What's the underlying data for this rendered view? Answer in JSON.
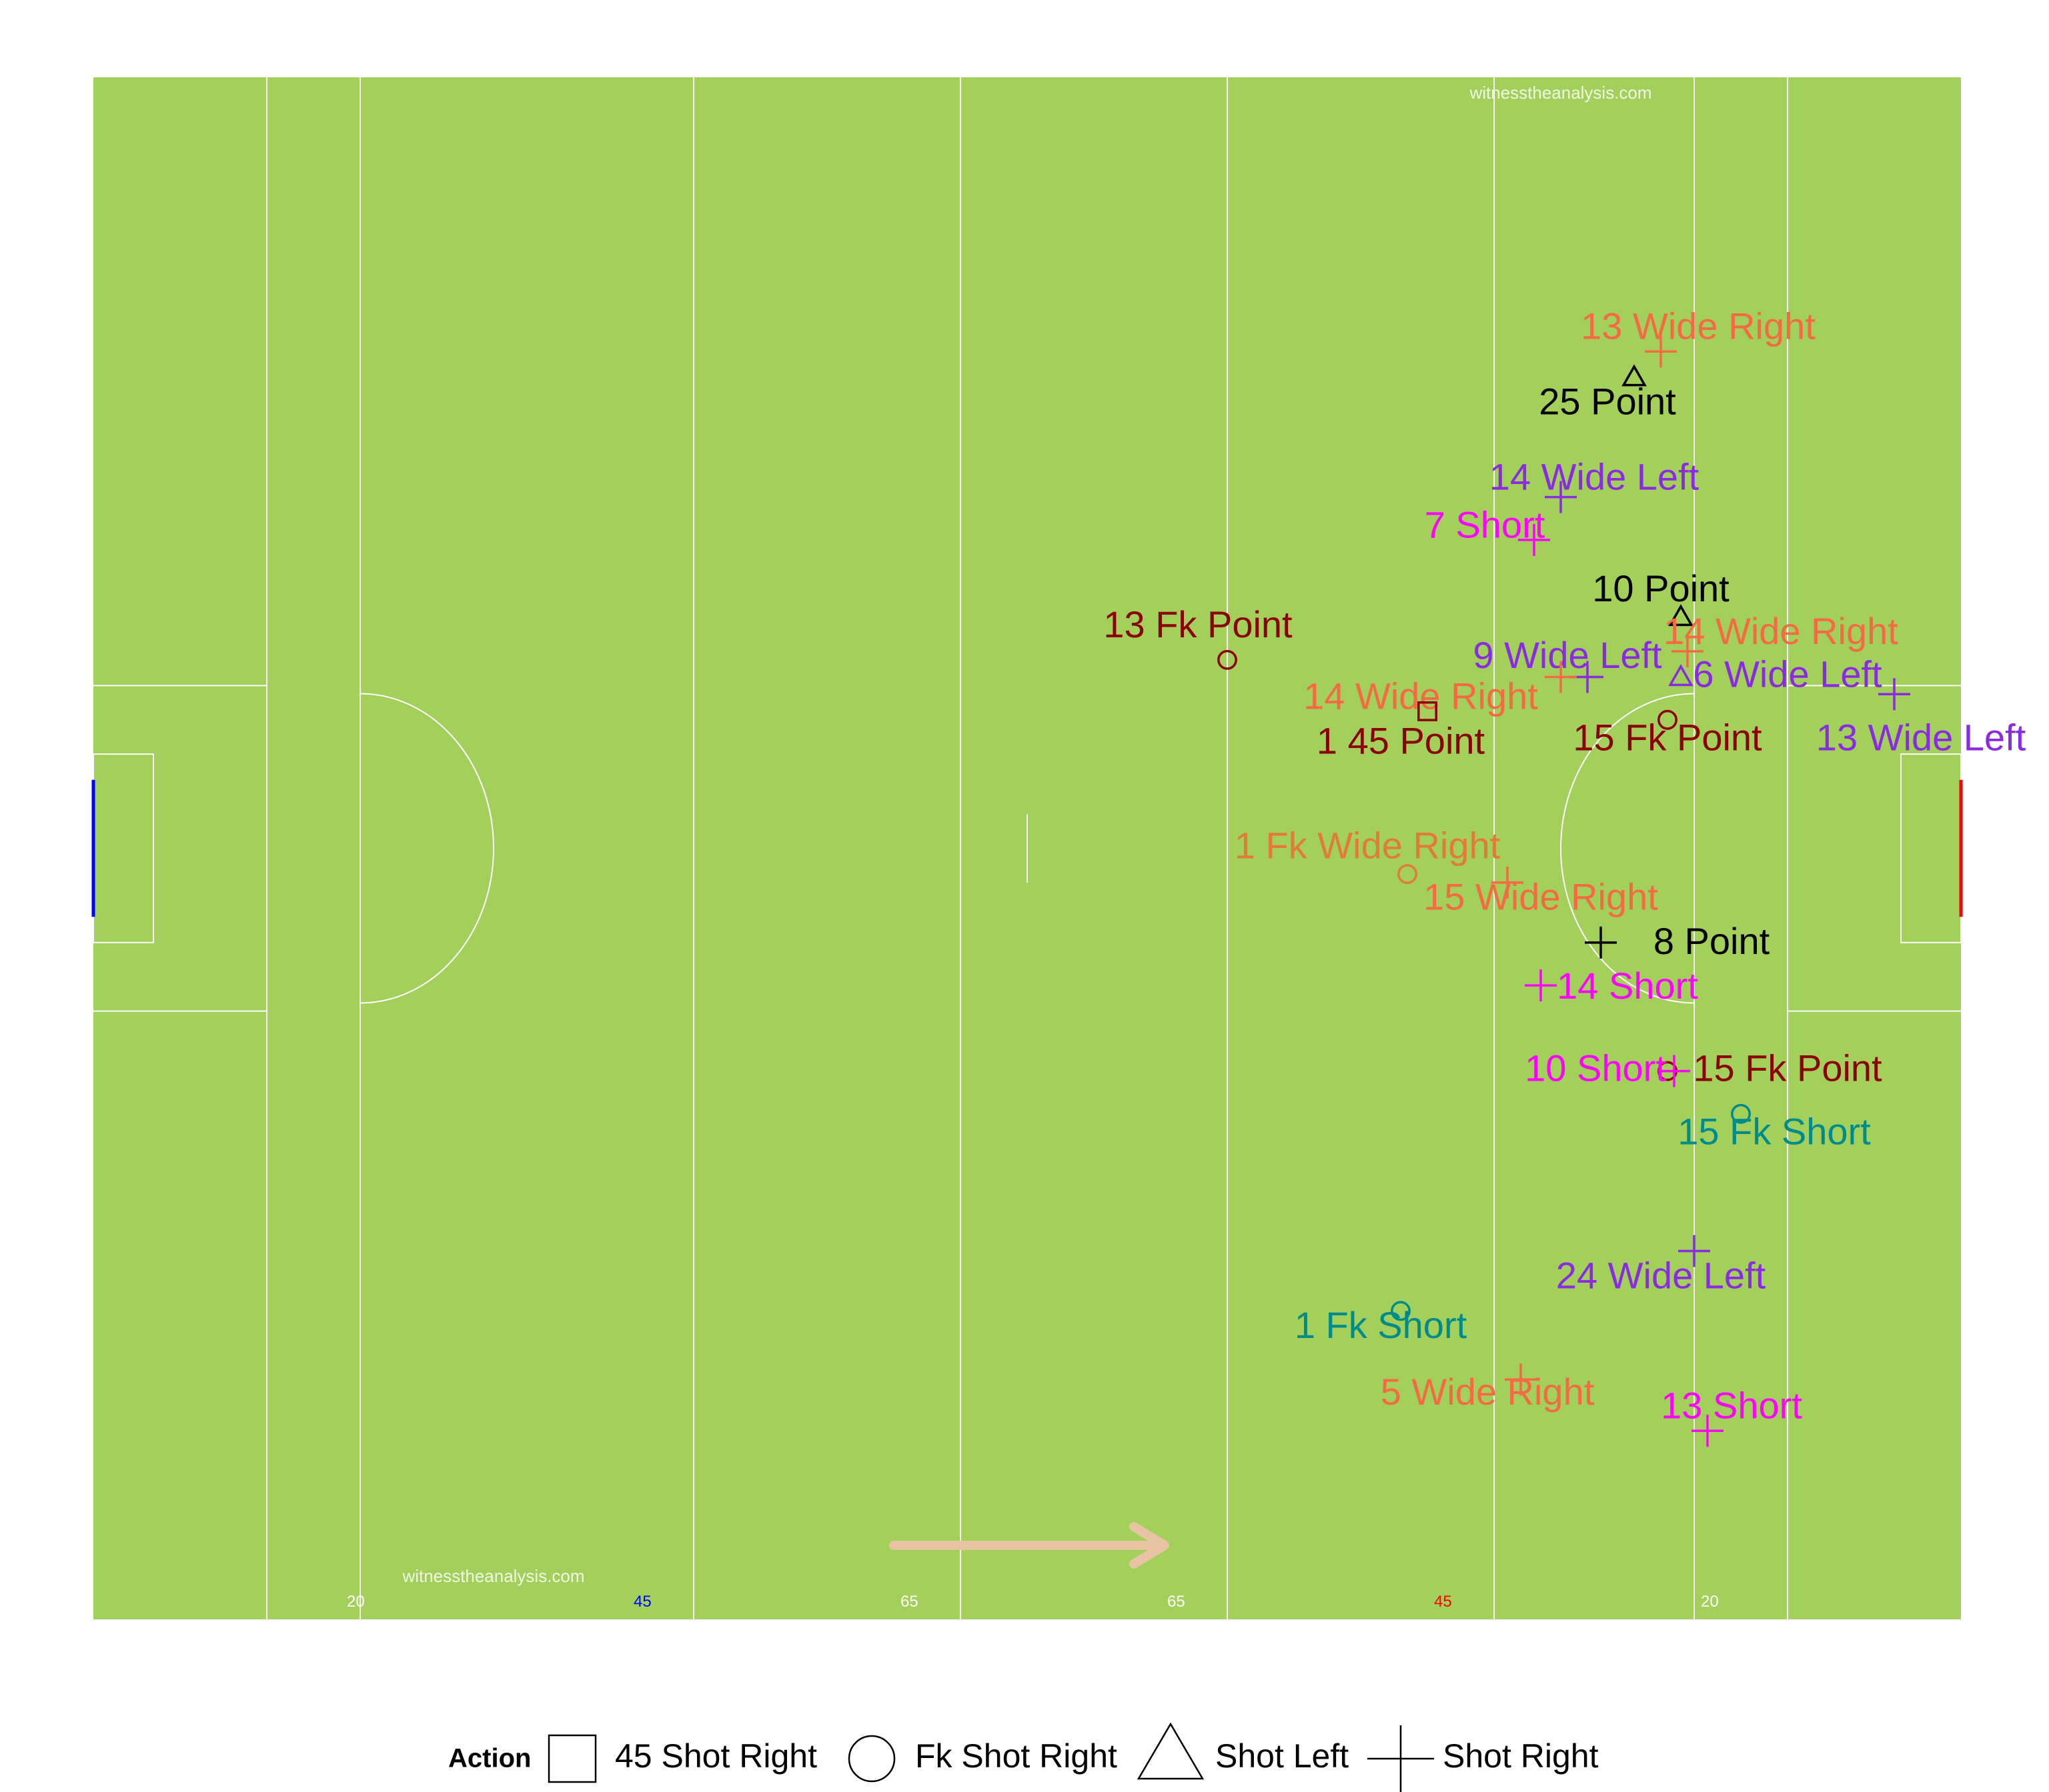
{
  "watermark_top": "witnesstheanalysis.com",
  "watermark_bottom": "witnesstheanalysis.com",
  "colors": {
    "pitch": "#a3cf5b",
    "lines": "#ffffff",
    "left_goal": "#0000ff",
    "right_goal": "#ff0000",
    "arrow": "#e8c3a3",
    "point": "#000000",
    "fk_point": "#8b0000",
    "wide_right": "#f46a43",
    "wide_left": "#8a2be2",
    "short": "#ff00ff",
    "fk_short": "#008b8b",
    "fk_wide_right": "#e07b39"
  },
  "chart_data": {
    "type": "scatter",
    "description_units": "x = metres from left end line (0-140), y = metres across pitch (0-90)",
    "xlim": [
      0,
      140
    ],
    "ylim": [
      0,
      90
    ],
    "distance_labels": [
      {
        "x": 19,
        "text": "20",
        "color": "#ffffff"
      },
      {
        "x": 40.5,
        "text": "45",
        "color": "#0000ff"
      },
      {
        "x": 60.5,
        "text": "65",
        "color": "#ffffff"
      },
      {
        "x": 80.5,
        "text": "65",
        "color": "#ffffff"
      },
      {
        "x": 100.5,
        "text": "45",
        "color": "#ff0000"
      },
      {
        "x": 120.5,
        "text": "20",
        "color": "#ffffff"
      }
    ],
    "legend": {
      "title": "Action",
      "entries": [
        {
          "shape": "square",
          "label": "45 Shot Right"
        },
        {
          "shape": "circle",
          "label": "Fk Shot Right"
        },
        {
          "shape": "triangle",
          "label": "Shot Left"
        },
        {
          "shape": "plus",
          "label": "Shot Right"
        }
      ]
    },
    "points": [
      {
        "x": 117.5,
        "y": 74.0,
        "shape": "plus",
        "label": "13 Wide Right",
        "color": "wide_right",
        "lx": 120.3,
        "ly": 75.3
      },
      {
        "x": 115.5,
        "y": 72.5,
        "shape": "triangle",
        "label": "25 Point",
        "color": "point",
        "lx": 113.5,
        "ly": 70.9
      },
      {
        "x": 110.0,
        "y": 65.5,
        "shape": "plus",
        "label": "14 Wide Left",
        "color": "wide_left",
        "lx": 112.5,
        "ly": 66.5
      },
      {
        "x": 108.0,
        "y": 63.0,
        "shape": "plus",
        "label": "7 Short",
        "color": "short",
        "lx": 104.3,
        "ly": 63.7
      },
      {
        "x": 119.0,
        "y": 58.5,
        "shape": "triangle",
        "label": "10 Point",
        "color": "point",
        "lx": 117.5,
        "ly": 60.0
      },
      {
        "x": 119.5,
        "y": 56.5,
        "shape": "plus",
        "label": "14 Wide Right",
        "color": "wide_right",
        "lx": 126.5,
        "ly": 57.5
      },
      {
        "x": 119.0,
        "y": 55.0,
        "shape": "triangle",
        "label": "6 Wide Left",
        "color": "wide_left",
        "lx": 127.0,
        "ly": 55.0
      },
      {
        "x": 112.0,
        "y": 55.0,
        "shape": "plus",
        "label": "9 Wide Left",
        "color": "wide_left",
        "lx": 110.5,
        "ly": 56.1
      },
      {
        "x": 110.0,
        "y": 55.0,
        "shape": "plus",
        "label": "14 Wide Right",
        "color": "wide_right",
        "lx": 99.5,
        "ly": 53.7
      },
      {
        "x": 85.0,
        "y": 56.0,
        "shape": "circle",
        "label": "13 Fk Point",
        "color": "fk_point",
        "lx": 82.8,
        "ly": 57.9
      },
      {
        "x": 100.0,
        "y": 53.0,
        "shape": "square",
        "label": "1 45 Point",
        "color": "fk_point",
        "lx": 98.0,
        "ly": 51.1
      },
      {
        "x": 118.0,
        "y": 52.5,
        "shape": "circle",
        "label": "15 Fk Point",
        "color": "fk_point",
        "lx": 118.0,
        "ly": 51.3
      },
      {
        "x": 135.0,
        "y": 54.0,
        "shape": "plus",
        "label": "13 Wide Left",
        "color": "wide_left",
        "lx": 137.0,
        "ly": 51.3
      },
      {
        "x": 98.5,
        "y": 43.5,
        "shape": "circle",
        "label": "1 Fk Wide Right",
        "color": "fk_wide_right",
        "lx": 95.5,
        "ly": 45.0
      },
      {
        "x": 106.0,
        "y": 43.0,
        "shape": "plus",
        "label": "15 Wide Right",
        "color": "wide_right",
        "lx": 108.5,
        "ly": 42.0
      },
      {
        "x": 113.0,
        "y": 39.5,
        "shape": "plus",
        "label": "8 Point",
        "color": "point",
        "lx": 121.3,
        "ly": 39.4
      },
      {
        "x": 108.5,
        "y": 37.0,
        "shape": "plus",
        "label": "14 Short",
        "color": "short",
        "lx": 115.0,
        "ly": 36.8
      },
      {
        "x": 118.0,
        "y": 32.0,
        "shape": "circle",
        "label": "15 Fk Point",
        "color": "fk_point",
        "lx": 127.0,
        "ly": 32.0
      },
      {
        "x": 118.5,
        "y": 32.0,
        "shape": "plus",
        "label": "10 Short",
        "color": "short",
        "lx": 112.6,
        "ly": 32.0
      },
      {
        "x": 123.5,
        "y": 29.5,
        "shape": "circle",
        "label": "15 Fk Short",
        "color": "fk_short",
        "lx": 126.0,
        "ly": 28.3
      },
      {
        "x": 120.0,
        "y": 21.5,
        "shape": "plus",
        "label": "24 Wide Left",
        "color": "wide_left",
        "lx": 117.5,
        "ly": 19.9
      },
      {
        "x": 98.0,
        "y": 18.0,
        "shape": "circle",
        "label": "1 Fk Short",
        "color": "fk_short",
        "lx": 96.5,
        "ly": 17.0
      },
      {
        "x": 107.0,
        "y": 14.0,
        "shape": "plus",
        "label": "5 Wide Right",
        "color": "wide_right",
        "lx": 104.5,
        "ly": 13.1
      },
      {
        "x": 121.0,
        "y": 11.0,
        "shape": "plus",
        "label": "13 Short",
        "color": "short",
        "lx": 122.8,
        "ly": 12.3
      }
    ]
  }
}
